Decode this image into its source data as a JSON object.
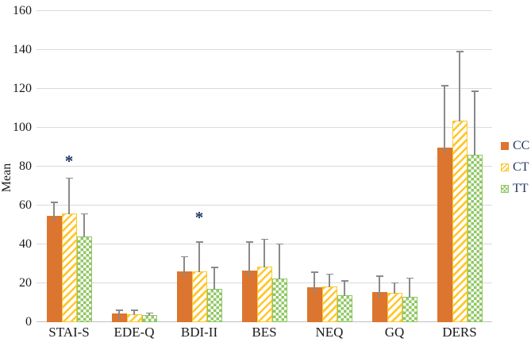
{
  "chart_data": {
    "type": "bar",
    "title": "",
    "ylabel": "Mean",
    "xlabel": "",
    "ylim": [
      0,
      160
    ],
    "yticks": [
      0,
      20,
      40,
      60,
      80,
      100,
      120,
      140,
      160
    ],
    "grid": true,
    "legend_position": "right",
    "categories": [
      "STAI-S",
      "EDE-Q",
      "BDI-II",
      "BES",
      "NEQ",
      "GQ",
      "DERS"
    ],
    "series": [
      {
        "name": "CC",
        "fill": "solid",
        "color": "#DC7530",
        "values": [
          54.5,
          4.5,
          26,
          26.5,
          18,
          15.5,
          90
        ],
        "error_bar_tops": [
          62,
          6.5,
          34,
          41.5,
          26,
          24,
          122
        ]
      },
      {
        "name": "CT",
        "fill": "diagonal-stripe",
        "color": "#FFC72C",
        "values": [
          56,
          4,
          26,
          28.5,
          18.5,
          15,
          103.5
        ],
        "error_bar_tops": [
          74.5,
          6.5,
          41.5,
          43,
          25,
          20.5,
          139.5
        ]
      },
      {
        "name": "TT",
        "fill": "checkerboard",
        "color": "#8FC763",
        "values": [
          44,
          3.6,
          17,
          22.5,
          14,
          13,
          86
        ],
        "error_bar_tops": [
          56,
          5,
          28.5,
          40.5,
          21.5,
          23,
          119
        ]
      }
    ],
    "annotations": [
      {
        "text": "*",
        "category": "STAI-S",
        "y": 82,
        "color": "#1F3864"
      },
      {
        "text": "*",
        "category": "BDI-II",
        "y": 53,
        "color": "#1F3864"
      }
    ],
    "colors": {
      "gridline": "#DADADA",
      "axis_line": "#C0C0C0",
      "error_bar": "#8A8A8A",
      "tick_text": "#1A1A1A",
      "legend_text": "#1F3864"
    }
  }
}
